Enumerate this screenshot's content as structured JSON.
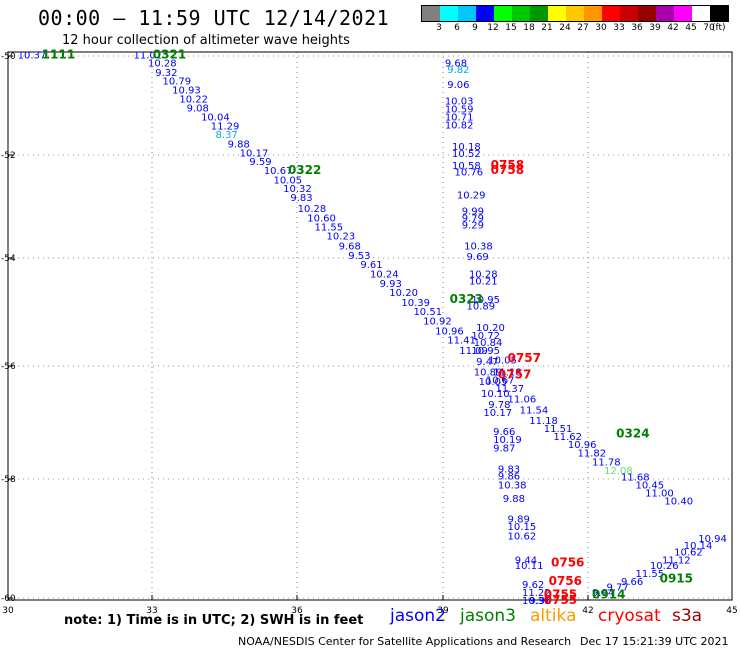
{
  "header": {
    "title": "00:00 – 11:59 UTC 12/14/2021",
    "subtitle": "12 hour collection of altimeter wave heights"
  },
  "colorbar": {
    "colors": [
      "#808080",
      "#00ffff",
      "#00c8ff",
      "#0000ff",
      "#00ff00",
      "#00c800",
      "#009600",
      "#ffff00",
      "#ffc800",
      "#ff9600",
      "#ff0000",
      "#c80000",
      "#960000",
      "#aa00aa",
      "#ff00ff",
      "#ffffff",
      "#000000"
    ],
    "labels": [
      "3",
      "6",
      "9",
      "12",
      "15",
      "18",
      "21",
      "24",
      "27",
      "30",
      "33",
      "36",
      "39",
      "42",
      "45",
      "70"
    ],
    "unit": "(ft)"
  },
  "axes": {
    "lon_ticks": [
      "30",
      "33",
      "36",
      "39",
      "42",
      "45"
    ],
    "lat_ticks": [
      "-50",
      "-52",
      "-54",
      "-56",
      "-58",
      "-60"
    ]
  },
  "satellites": [
    {
      "name": "jason2",
      "color": "#0000ff"
    },
    {
      "name": "jason3",
      "color": "#008000"
    },
    {
      "name": "altika",
      "color": "#ff9900"
    },
    {
      "name": "cryosat",
      "color": "#ff0000"
    },
    {
      "name": "s3a",
      "color": "#990000"
    }
  ],
  "note": "note: 1) Time is in UTC; 2) SWH is in feet",
  "footer": {
    "center": "NOAA/NESDIS Center for Satellite Applications and Research",
    "date": "Dec 17 15:21:39 UTC 2021"
  },
  "map_data": {
    "lon_range": [
      30,
      45
    ],
    "lat_range": [
      -60.2,
      -50
    ],
    "track1": [
      {
        "v": "10.37",
        "lon": 30.2,
        "lat": -50.05,
        "c": "#0000ff"
      },
      {
        "v": "11.01",
        "lon": 32.6,
        "lat": -50.05,
        "c": "#0000ff"
      },
      {
        "v": "10.28",
        "lon": 32.9,
        "lat": -50.2,
        "c": "#0000ff"
      },
      {
        "v": "9.32",
        "lon": 33.05,
        "lat": -50.37,
        "c": "#0000ff"
      },
      {
        "v": "10.79",
        "lon": 33.2,
        "lat": -50.53,
        "c": "#0000ff"
      },
      {
        "v": "10.93",
        "lon": 33.4,
        "lat": -50.7,
        "c": "#0000ff"
      },
      {
        "v": "10.22",
        "lon": 33.55,
        "lat": -50.87,
        "c": "#0000ff"
      },
      {
        "v": "9.08",
        "lon": 33.7,
        "lat": -51.03,
        "c": "#0000ff"
      },
      {
        "v": "10.04",
        "lon": 34.0,
        "lat": -51.2,
        "c": "#0000ff"
      },
      {
        "v": "11.29",
        "lon": 34.2,
        "lat": -51.37,
        "c": "#0000ff"
      },
      {
        "v": "8.37",
        "lon": 34.3,
        "lat": -51.53,
        "c": "#00aaee"
      },
      {
        "v": "9.88",
        "lon": 34.55,
        "lat": -51.7,
        "c": "#0000ff"
      },
      {
        "v": "10.17",
        "lon": 34.8,
        "lat": -51.87,
        "c": "#0000ff"
      },
      {
        "v": "9.59",
        "lon": 35.0,
        "lat": -52.03,
        "c": "#0000ff"
      },
      {
        "v": "10.67",
        "lon": 35.3,
        "lat": -52.2,
        "c": "#0000ff"
      },
      {
        "v": "10.05",
        "lon": 35.5,
        "lat": -52.37,
        "c": "#0000ff"
      },
      {
        "v": "10.32",
        "lon": 35.7,
        "lat": -52.53,
        "c": "#0000ff"
      },
      {
        "v": "9.83",
        "lon": 35.85,
        "lat": -52.7,
        "c": "#0000ff"
      },
      {
        "v": "10.28",
        "lon": 36.0,
        "lat": -52.9,
        "c": "#0000ff"
      },
      {
        "v": "10.60",
        "lon": 36.2,
        "lat": -53.08,
        "c": "#0000ff"
      },
      {
        "v": "11.55",
        "lon": 36.35,
        "lat": -53.25,
        "c": "#0000ff"
      },
      {
        "v": "10.23",
        "lon": 36.6,
        "lat": -53.42,
        "c": "#0000ff"
      },
      {
        "v": "9.68",
        "lon": 36.85,
        "lat": -53.6,
        "c": "#0000ff"
      },
      {
        "v": "9.53",
        "lon": 37.05,
        "lat": -53.78,
        "c": "#0000ff"
      },
      {
        "v": "9.61",
        "lon": 37.3,
        "lat": -53.95,
        "c": "#0000ff"
      },
      {
        "v": "10.24",
        "lon": 37.5,
        "lat": -54.12,
        "c": "#0000ff"
      },
      {
        "v": "9.93",
        "lon": 37.7,
        "lat": -54.3,
        "c": "#0000ff"
      },
      {
        "v": "10.20",
        "lon": 37.9,
        "lat": -54.47,
        "c": "#0000ff"
      },
      {
        "v": "10.39",
        "lon": 38.15,
        "lat": -54.65,
        "c": "#0000ff"
      },
      {
        "v": "10.51",
        "lon": 38.4,
        "lat": -54.82,
        "c": "#0000ff"
      },
      {
        "v": "10.92",
        "lon": 38.6,
        "lat": -55.0,
        "c": "#0000ff"
      },
      {
        "v": "10.96",
        "lon": 38.85,
        "lat": -55.18,
        "c": "#0000ff"
      },
      {
        "v": "11.41",
        "lon": 39.1,
        "lat": -55.35,
        "c": "#0000ff"
      },
      {
        "v": "11.09",
        "lon": 39.35,
        "lat": -55.55,
        "c": "#0000ff"
      },
      {
        "v": "10.89",
        "lon": 39.65,
        "lat": -55.95,
        "c": "#0000ff"
      },
      {
        "v": "10.67",
        "lon": 39.9,
        "lat": -56.1,
        "c": "#0000ff"
      },
      {
        "v": "11.37",
        "lon": 40.1,
        "lat": -56.25,
        "c": "#0000ff"
      },
      {
        "v": "11.06",
        "lon": 40.35,
        "lat": -56.45,
        "c": "#0000ff"
      },
      {
        "v": "11.54",
        "lon": 40.6,
        "lat": -56.65,
        "c": "#0000ff"
      },
      {
        "v": "11.18",
        "lon": 40.8,
        "lat": -56.85,
        "c": "#0000ff"
      },
      {
        "v": "11.51",
        "lon": 41.1,
        "lat": -57.0,
        "c": "#0000ff"
      },
      {
        "v": "11.62",
        "lon": 41.3,
        "lat": -57.15,
        "c": "#0000ff"
      },
      {
        "v": "10.96",
        "lon": 41.6,
        "lat": -57.3,
        "c": "#0000ff"
      },
      {
        "v": "11.82",
        "lon": 41.8,
        "lat": -57.45,
        "c": "#0000ff"
      },
      {
        "v": "11.78",
        "lon": 42.1,
        "lat": -57.62,
        "c": "#0000ff"
      },
      {
        "v": "12.08",
        "lon": 42.35,
        "lat": -57.78,
        "c": "#66dd66"
      },
      {
        "v": "11.68",
        "lon": 42.7,
        "lat": -57.9,
        "c": "#0000ff"
      },
      {
        "v": "10.45",
        "lon": 43.0,
        "lat": -58.05,
        "c": "#0000ff"
      },
      {
        "v": "11.00",
        "lon": 43.2,
        "lat": -58.2,
        "c": "#0000ff"
      },
      {
        "v": "10.40",
        "lon": 43.6,
        "lat": -58.35,
        "c": "#0000ff"
      }
    ],
    "track2": [
      {
        "v": "9.68",
        "lon": 39.05,
        "lat": -50.2,
        "c": "#0000ff"
      },
      {
        "v": "9.82",
        "lon": 39.1,
        "lat": -50.32,
        "c": "#00aaee"
      },
      {
        "v": "9.06",
        "lon": 39.1,
        "lat": -50.6,
        "c": "#0000ff"
      },
      {
        "v": "10.03",
        "lon": 39.05,
        "lat": -50.9,
        "c": "#0000ff"
      },
      {
        "v": "10.59",
        "lon": 39.05,
        "lat": -51.05,
        "c": "#0000ff"
      },
      {
        "v": "10.71",
        "lon": 39.05,
        "lat": -51.2,
        "c": "#0000ff"
      },
      {
        "v": "10.82",
        "lon": 39.05,
        "lat": -51.35,
        "c": "#0000ff"
      },
      {
        "v": "10.18",
        "lon": 39.2,
        "lat": -51.75,
        "c": "#0000ff"
      },
      {
        "v": "10.52",
        "lon": 39.2,
        "lat": -51.88,
        "c": "#0000ff"
      },
      {
        "v": "10.58",
        "lon": 39.2,
        "lat": -52.1,
        "c": "#0000ff"
      },
      {
        "v": "10.76",
        "lon": 39.25,
        "lat": -52.22,
        "c": "#0000ff"
      },
      {
        "v": "10.29",
        "lon": 39.3,
        "lat": -52.65,
        "c": "#0000ff"
      },
      {
        "v": "9.99",
        "lon": 39.4,
        "lat": -52.95,
        "c": "#0000ff"
      },
      {
        "v": "9.79",
        "lon": 39.4,
        "lat": -53.08,
        "c": "#0000ff"
      },
      {
        "v": "9.29",
        "lon": 39.4,
        "lat": -53.21,
        "c": "#0000ff"
      },
      {
        "v": "10.38",
        "lon": 39.45,
        "lat": -53.6,
        "c": "#0000ff"
      },
      {
        "v": "9.69",
        "lon": 39.5,
        "lat": -53.8,
        "c": "#0000ff"
      },
      {
        "v": "10.28",
        "lon": 39.55,
        "lat": -54.12,
        "c": "#0000ff"
      },
      {
        "v": "10.21",
        "lon": 39.55,
        "lat": -54.25,
        "c": "#0000ff"
      },
      {
        "v": "10.95",
        "lon": 39.6,
        "lat": -54.6,
        "c": "#0000ff"
      },
      {
        "v": "10.89",
        "lon": 39.5,
        "lat": -54.72,
        "c": "#0000ff"
      },
      {
        "v": "10.20",
        "lon": 39.7,
        "lat": -55.12,
        "c": "#0000ff"
      },
      {
        "v": "10.72",
        "lon": 39.6,
        "lat": -55.27,
        "c": "#0000ff"
      },
      {
        "v": "10.84",
        "lon": 39.65,
        "lat": -55.4,
        "c": "#0000ff"
      },
      {
        "v": "10.95",
        "lon": 39.6,
        "lat": -55.55,
        "c": "#0000ff"
      },
      {
        "v": "9.47",
        "lon": 39.7,
        "lat": -55.75,
        "c": "#0000ff"
      },
      {
        "v": "10.05",
        "lon": 39.95,
        "lat": -55.72,
        "c": "#0000ff"
      },
      {
        "v": "11.18",
        "lon": 40.05,
        "lat": -55.95,
        "c": "#0000ff"
      },
      {
        "v": "10.05",
        "lon": 39.75,
        "lat": -56.12,
        "c": "#0000ff"
      },
      {
        "v": "10.10",
        "lon": 39.8,
        "lat": -56.35,
        "c": "#0000ff"
      },
      {
        "v": "9.78",
        "lon": 39.95,
        "lat": -56.55,
        "c": "#0000ff"
      },
      {
        "v": "10.17",
        "lon": 39.85,
        "lat": -56.7,
        "c": "#0000ff"
      },
      {
        "v": "9.66",
        "lon": 40.05,
        "lat": -57.05,
        "c": "#0000ff"
      },
      {
        "v": "10.19",
        "lon": 40.05,
        "lat": -57.2,
        "c": "#0000ff"
      },
      {
        "v": "9.87",
        "lon": 40.05,
        "lat": -57.36,
        "c": "#0000ff"
      },
      {
        "v": "9.83",
        "lon": 40.15,
        "lat": -57.75,
        "c": "#0000ff"
      },
      {
        "v": "9.86",
        "lon": 40.15,
        "lat": -57.88,
        "c": "#0000ff"
      },
      {
        "v": "10.38",
        "lon": 40.15,
        "lat": -58.05,
        "c": "#0000ff"
      },
      {
        "v": "9.88",
        "lon": 40.25,
        "lat": -58.3,
        "c": "#0000ff"
      },
      {
        "v": "9.89",
        "lon": 40.35,
        "lat": -58.68,
        "c": "#0000ff"
      },
      {
        "v": "10.15",
        "lon": 40.35,
        "lat": -58.82,
        "c": "#0000ff"
      },
      {
        "v": "10.62",
        "lon": 40.35,
        "lat": -59.0,
        "c": "#0000ff"
      },
      {
        "v": "9.44",
        "lon": 40.5,
        "lat": -59.45,
        "c": "#0000ff"
      },
      {
        "v": "10.11",
        "lon": 40.5,
        "lat": -59.55,
        "c": "#0000ff"
      },
      {
        "v": "9.62",
        "lon": 40.65,
        "lat": -59.9,
        "c": "#0000ff"
      },
      {
        "v": "11.22",
        "lon": 40.65,
        "lat": -60.05,
        "c": "#0000ff"
      },
      {
        "v": "10.31",
        "lon": 40.65,
        "lat": -60.2,
        "c": "#0000ff"
      }
    ],
    "track3": [
      {
        "v": "9.96",
        "lon": 40.8,
        "lat": -60.2,
        "c": "#0000ff"
      },
      {
        "v": "9.84",
        "lon": 42.1,
        "lat": -60.05,
        "c": "#0000ff"
      },
      {
        "v": "9.77",
        "lon": 42.4,
        "lat": -59.95,
        "c": "#0000ff"
      },
      {
        "v": "9.66",
        "lon": 42.7,
        "lat": -59.85,
        "c": "#0000ff"
      },
      {
        "v": "11.55",
        "lon": 43.0,
        "lat": -59.7,
        "c": "#0000ff"
      },
      {
        "v": "10.26",
        "lon": 43.3,
        "lat": -59.55,
        "c": "#0000ff"
      },
      {
        "v": "11.12",
        "lon": 43.55,
        "lat": -59.45,
        "c": "#0000ff"
      },
      {
        "v": "10.62",
        "lon": 43.8,
        "lat": -59.3,
        "c": "#0000ff"
      },
      {
        "v": "10.14",
        "lon": 44.0,
        "lat": -59.18,
        "c": "#0000ff"
      },
      {
        "v": "10.94",
        "lon": 44.3,
        "lat": -59.05,
        "c": "#0000ff"
      }
    ],
    "time_labels": [
      {
        "v": "1111",
        "lon": 30.7,
        "lat": -50.05,
        "c": "#008000"
      },
      {
        "v": "0321",
        "lon": 33.0,
        "lat": -50.05,
        "c": "#008000"
      },
      {
        "v": "0322",
        "lon": 35.8,
        "lat": -52.2,
        "c": "#008000"
      },
      {
        "v": "0323",
        "lon": 39.15,
        "lat": -54.6,
        "c": "#008000"
      },
      {
        "v": "0324",
        "lon": 42.6,
        "lat": -57.1,
        "c": "#008000"
      },
      {
        "v": "0758",
        "lon": 40.0,
        "lat": -52.1,
        "c": "#ff0000"
      },
      {
        "v": "0758",
        "lon": 40.0,
        "lat": -52.2,
        "c": "#ff0000"
      },
      {
        "v": "0757",
        "lon": 40.35,
        "lat": -55.7,
        "c": "#ff0000"
      },
      {
        "v": "0757",
        "lon": 40.15,
        "lat": -56.0,
        "c": "#ff0000"
      },
      {
        "v": "0756",
        "lon": 41.25,
        "lat": -59.5,
        "c": "#ff0000"
      },
      {
        "v": "0756",
        "lon": 41.2,
        "lat": -59.85,
        "c": "#ff0000"
      },
      {
        "v": "0755",
        "lon": 41.1,
        "lat": -60.1,
        "c": "#ff0000"
      },
      {
        "v": "0755",
        "lon": 41.1,
        "lat": -60.2,
        "c": "#ff0000"
      },
      {
        "v": "0914",
        "lon": 42.1,
        "lat": -60.1,
        "c": "#008000"
      },
      {
        "v": "0915",
        "lon": 43.5,
        "lat": -59.8,
        "c": "#008000"
      }
    ]
  }
}
